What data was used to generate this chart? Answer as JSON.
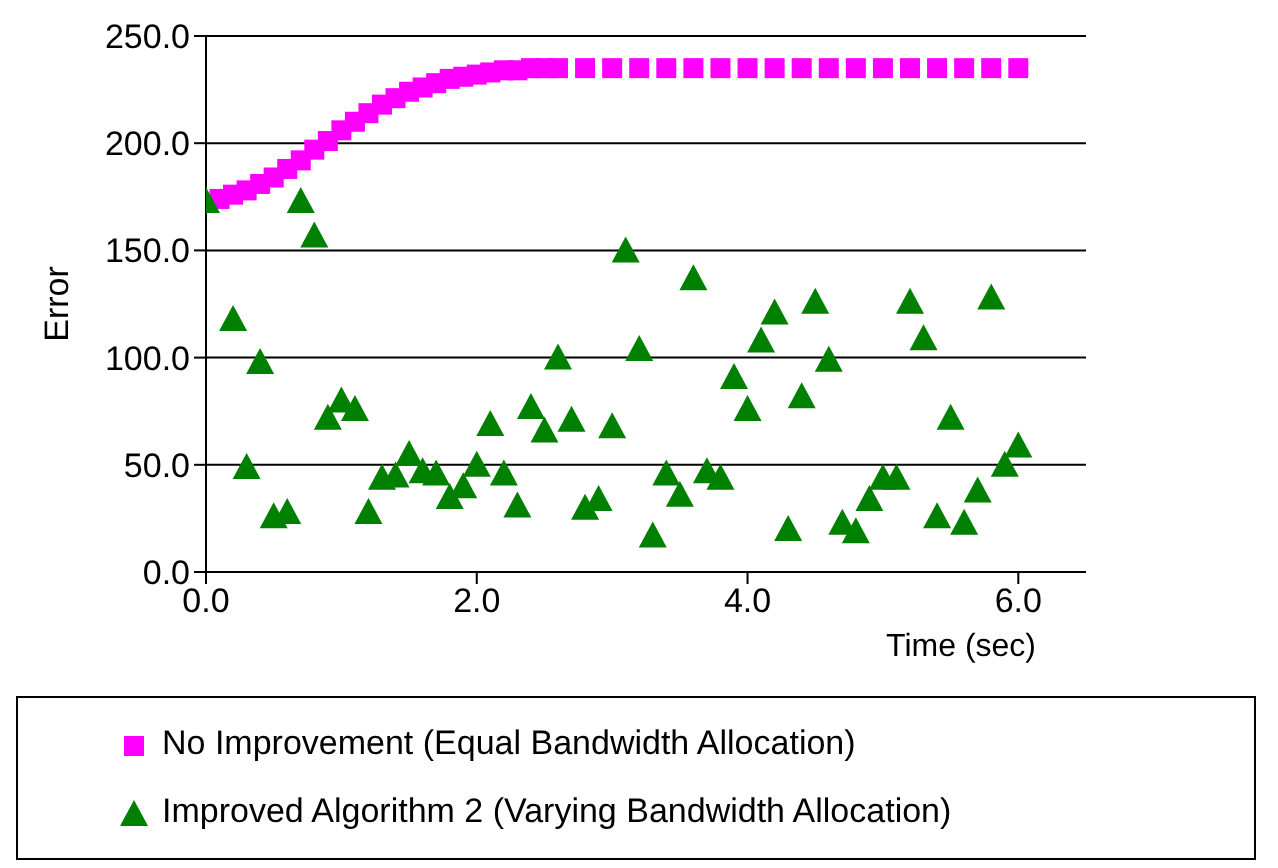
{
  "chart_data": {
    "type": "scatter",
    "xlabel": "Time (sec)",
    "ylabel": "Error",
    "xlim": [
      0,
      6.5
    ],
    "xticks": [
      {
        "value": 0,
        "label": "0.0"
      },
      {
        "value": 2,
        "label": "2.0"
      },
      {
        "value": 4,
        "label": "4.0"
      },
      {
        "value": 6,
        "label": "6.0"
      }
    ],
    "ylim": [
      0,
      250
    ],
    "yticks": [
      {
        "value": 0,
        "label": "0.0"
      },
      {
        "value": 50,
        "label": "50.0"
      },
      {
        "value": 100,
        "label": "100.0"
      },
      {
        "value": 150,
        "label": "150.0"
      },
      {
        "value": 200,
        "label": "200.0"
      },
      {
        "value": 250,
        "label": "250.0"
      }
    ],
    "grid": "y",
    "legend": "bottom",
    "series": [
      {
        "name": "No Improvement (Equal Bandwidth Allocation)",
        "color": "#ff00ff",
        "marker": "square",
        "x": [
          0.1,
          0.2,
          0.3,
          0.4,
          0.5,
          0.6,
          0.7,
          0.8,
          0.9,
          1.0,
          1.1,
          1.2,
          1.3,
          1.4,
          1.5,
          1.6,
          1.7,
          1.8,
          1.9,
          2.0,
          2.1,
          2.2,
          2.3,
          2.4,
          2.5,
          2.6,
          2.8,
          3.0,
          3.2,
          3.4,
          3.6,
          3.8,
          4.0,
          4.2,
          4.4,
          4.6,
          4.8,
          5.0,
          5.2,
          5.4,
          5.6,
          5.8,
          6.0
        ],
        "values": [
          174,
          176,
          178,
          181,
          184,
          188,
          192,
          197,
          201,
          206,
          210,
          214,
          218,
          221,
          224,
          226,
          228,
          230,
          231,
          232,
          233,
          234,
          234,
          235,
          235,
          235,
          235,
          235,
          235,
          235,
          235,
          235,
          235,
          235,
          235,
          235,
          235,
          235,
          235,
          235,
          235,
          235,
          235
        ]
      },
      {
        "name": "Improved Algorithm 2 (Varying Bandwidth Allocation)",
        "color": "#008000",
        "marker": "triangle",
        "x": [
          0,
          0.2,
          0.3,
          0.4,
          0.5,
          0.6,
          0.7,
          0.8,
          0.9,
          1.0,
          1.1,
          1.2,
          1.3,
          1.4,
          1.5,
          1.6,
          1.7,
          1.8,
          1.9,
          2.0,
          2.1,
          2.2,
          2.3,
          2.4,
          2.5,
          2.6,
          2.7,
          2.8,
          2.9,
          3.0,
          3.1,
          3.2,
          3.3,
          3.4,
          3.5,
          3.6,
          3.7,
          3.8,
          3.9,
          4.0,
          4.1,
          4.2,
          4.3,
          4.4,
          4.5,
          4.6,
          4.7,
          4.8,
          4.9,
          5.0,
          5.1,
          5.2,
          5.3,
          5.4,
          5.5,
          5.6,
          5.7,
          5.8,
          5.9,
          6.0
        ],
        "values": [
          173,
          118,
          49,
          98,
          26,
          28,
          173,
          157,
          72,
          80,
          76,
          28,
          44,
          45,
          55,
          47,
          46,
          35,
          40,
          50,
          69,
          46,
          31,
          77,
          66,
          100,
          71,
          30,
          34,
          68,
          150,
          104,
          17,
          46,
          36,
          137,
          47,
          44,
          91,
          76,
          108,
          121,
          20,
          82,
          126,
          99,
          23,
          19,
          34,
          44,
          44,
          126,
          109,
          26,
          72,
          23,
          38,
          128,
          50,
          59
        ]
      }
    ]
  }
}
